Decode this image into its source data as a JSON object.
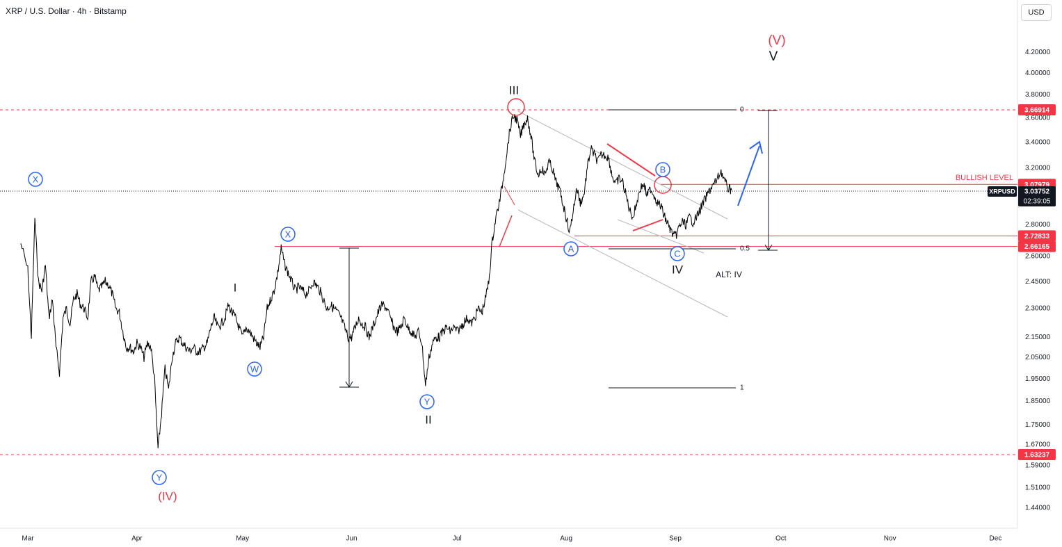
{
  "header": {
    "symbol_title": "XRP / U.S. Dollar · 4h · Bitstamp",
    "currency_button": "USD"
  },
  "chart_data": {
    "type": "line",
    "title": "XRP / U.S. Dollar · 4h · Bitstamp",
    "scale": "log",
    "ylim": [
      1.4,
      4.4
    ],
    "y_ticks": [
      "4.20000",
      "4.00000",
      "3.80000",
      "3.60000",
      "3.40000",
      "3.20000",
      "2.80000",
      "2.60000",
      "2.45000",
      "2.30000",
      "2.15000",
      "2.05000",
      "1.95000",
      "1.85000",
      "1.75000",
      "1.67000",
      "1.59000",
      "1.51000",
      "1.44000"
    ],
    "x_ticks": [
      "Mar",
      "Apr",
      "May",
      "Jun",
      "Jul",
      "Aug",
      "Sep",
      "Oct",
      "Nov",
      "Dec"
    ],
    "series": [
      {
        "name": "XRPUSD",
        "points": [
          [
            "Feb 27",
            2.68
          ],
          [
            "Mar 1",
            2.52
          ],
          [
            "Mar 2",
            2.15
          ],
          [
            "Mar 3",
            2.85
          ],
          [
            "Mar 4",
            2.45
          ],
          [
            "Mar 5",
            2.4
          ],
          [
            "Mar 6",
            2.55
          ],
          [
            "Mar 7",
            2.25
          ],
          [
            "Mar 8",
            2.35
          ],
          [
            "Mar 9",
            2.1
          ],
          [
            "Mar 10",
            1.98
          ],
          [
            "Mar 11",
            2.25
          ],
          [
            "Mar 12",
            2.3
          ],
          [
            "Mar 13",
            2.22
          ],
          [
            "Mar 14",
            2.35
          ],
          [
            "Mar 15",
            2.38
          ],
          [
            "Mar 16",
            2.32
          ],
          [
            "Mar 17",
            2.3
          ],
          [
            "Mar 18",
            2.25
          ],
          [
            "Mar 19",
            2.45
          ],
          [
            "Mar 20",
            2.48
          ],
          [
            "Mar 21",
            2.4
          ],
          [
            "Mar 22",
            2.42
          ],
          [
            "Mar 23",
            2.45
          ],
          [
            "Mar 24",
            2.43
          ],
          [
            "Mar 25",
            2.38
          ],
          [
            "Mar 26",
            2.3
          ],
          [
            "Mar 27",
            2.28
          ],
          [
            "Mar 28",
            2.18
          ],
          [
            "Mar 29",
            2.1
          ],
          [
            "Mar 30",
            2.1
          ],
          [
            "Mar 31",
            2.08
          ],
          [
            "Apr 1",
            2.12
          ],
          [
            "Apr 2",
            2.1
          ],
          [
            "Apr 3",
            2.05
          ],
          [
            "Apr 4",
            2.12
          ],
          [
            "Apr 5",
            2.1
          ],
          [
            "Apr 6",
            1.95
          ],
          [
            "Apr 7",
            1.65
          ],
          [
            "Apr 8",
            1.8
          ],
          [
            "Apr 9",
            2.0
          ],
          [
            "Apr 10",
            1.9
          ],
          [
            "Apr 11",
            2.05
          ],
          [
            "Apr 12",
            2.12
          ],
          [
            "Apr 13",
            2.15
          ],
          [
            "Apr 14",
            2.12
          ],
          [
            "Apr 15",
            2.1
          ],
          [
            "Apr 16",
            2.08
          ],
          [
            "Apr 17",
            2.1
          ],
          [
            "Apr 18",
            2.08
          ],
          [
            "Apr 19",
            2.08
          ],
          [
            "Apr 20",
            2.1
          ],
          [
            "Apr 21",
            2.12
          ],
          [
            "Apr 22",
            2.2
          ],
          [
            "Apr 23",
            2.25
          ],
          [
            "Apr 24",
            2.2
          ],
          [
            "Apr 25",
            2.22
          ],
          [
            "Apr 26",
            2.25
          ],
          [
            "Apr 27",
            2.32
          ],
          [
            "Apr 28",
            2.28
          ],
          [
            "Apr 29",
            2.25
          ],
          [
            "Apr 30",
            2.2
          ],
          [
            "May 1",
            2.15
          ],
          [
            "May 2",
            2.2
          ],
          [
            "May 3",
            2.18
          ],
          [
            "May 4",
            2.15
          ],
          [
            "May 5",
            2.12
          ],
          [
            "May 6",
            2.1
          ],
          [
            "May 7",
            2.15
          ],
          [
            "May 8",
            2.3
          ],
          [
            "May 9",
            2.35
          ],
          [
            "May 10",
            2.4
          ],
          [
            "May 11",
            2.5
          ],
          [
            "May 12",
            2.65
          ],
          [
            "May 13",
            2.55
          ],
          [
            "May 14",
            2.5
          ],
          [
            "May 15",
            2.45
          ],
          [
            "May 16",
            2.4
          ],
          [
            "May 17",
            2.42
          ],
          [
            "May 18",
            2.4
          ],
          [
            "May 19",
            2.38
          ],
          [
            "May 20",
            2.4
          ],
          [
            "May 21",
            2.45
          ],
          [
            "May 22",
            2.43
          ],
          [
            "May 23",
            2.4
          ],
          [
            "May 24",
            2.35
          ],
          [
            "May 25",
            2.3
          ],
          [
            "May 26",
            2.32
          ],
          [
            "May 27",
            2.3
          ],
          [
            "May 28",
            2.28
          ],
          [
            "May 29",
            2.25
          ],
          [
            "May 30",
            2.2
          ],
          [
            "May 31",
            2.15
          ],
          [
            "Jun 1",
            2.15
          ],
          [
            "Jun 2",
            2.2
          ],
          [
            "Jun 3",
            2.25
          ],
          [
            "Jun 4",
            2.22
          ],
          [
            "Jun 5",
            2.2
          ],
          [
            "Jun 6",
            2.15
          ],
          [
            "Jun 7",
            2.2
          ],
          [
            "Jun 8",
            2.25
          ],
          [
            "Jun 9",
            2.3
          ],
          [
            "Jun 10",
            2.32
          ],
          [
            "Jun 11",
            2.3
          ],
          [
            "Jun 12",
            2.25
          ],
          [
            "Jun 13",
            2.2
          ],
          [
            "Jun 14",
            2.18
          ],
          [
            "Jun 15",
            2.2
          ],
          [
            "Jun 16",
            2.25
          ],
          [
            "Jun 17",
            2.2
          ],
          [
            "Jun 18",
            2.18
          ],
          [
            "Jun 19",
            2.15
          ],
          [
            "Jun 20",
            2.18
          ],
          [
            "Jun 21",
            2.12
          ],
          [
            "Jun 22",
            1.92
          ],
          [
            "Jun 23",
            2.05
          ],
          [
            "Jun 24",
            2.12
          ],
          [
            "Jun 25",
            2.15
          ],
          [
            "Jun 26",
            2.15
          ],
          [
            "Jun 27",
            2.18
          ],
          [
            "Jun 28",
            2.2
          ],
          [
            "Jun 29",
            2.18
          ],
          [
            "Jun 30",
            2.2
          ],
          [
            "Jul 1",
            2.18
          ],
          [
            "Jul 2",
            2.2
          ],
          [
            "Jul 3",
            2.23
          ],
          [
            "Jul 4",
            2.25
          ],
          [
            "Jul 5",
            2.22
          ],
          [
            "Jul 6",
            2.25
          ],
          [
            "Jul 7",
            2.3
          ],
          [
            "Jul 8",
            2.28
          ],
          [
            "Jul 9",
            2.35
          ],
          [
            "Jul 10",
            2.45
          ],
          [
            "Jul 11",
            2.7
          ],
          [
            "Jul 12",
            2.85
          ],
          [
            "Jul 13",
            2.95
          ],
          [
            "Jul 14",
            3.1
          ],
          [
            "Jul 15",
            3.3
          ],
          [
            "Jul 16",
            3.5
          ],
          [
            "Jul 17",
            3.62
          ],
          [
            "Jul 18",
            3.58
          ],
          [
            "Jul 19",
            3.45
          ],
          [
            "Jul 20",
            3.55
          ],
          [
            "Jul 21",
            3.6
          ],
          [
            "Jul 22",
            3.45
          ],
          [
            "Jul 23",
            3.25
          ],
          [
            "Jul 24",
            3.15
          ],
          [
            "Jul 25",
            3.2
          ],
          [
            "Jul 26",
            3.15
          ],
          [
            "Jul 27",
            3.25
          ],
          [
            "Jul 28",
            3.2
          ],
          [
            "Jul 29",
            3.1
          ],
          [
            "Jul 30",
            3.05
          ],
          [
            "Jul 31",
            2.95
          ],
          [
            "Aug 1",
            2.85
          ],
          [
            "Aug 2",
            2.75
          ],
          [
            "Aug 3",
            2.9
          ],
          [
            "Aug 4",
            3.05
          ],
          [
            "Aug 5",
            2.95
          ],
          [
            "Aug 6",
            3.0
          ],
          [
            "Aug 7",
            3.2
          ],
          [
            "Aug 8",
            3.35
          ],
          [
            "Aug 9",
            3.3
          ],
          [
            "Aug 10",
            3.25
          ],
          [
            "Aug 11",
            3.3
          ],
          [
            "Aug 12",
            3.3
          ],
          [
            "Aug 13",
            3.28
          ],
          [
            "Aug 14",
            3.15
          ],
          [
            "Aug 15",
            3.08
          ],
          [
            "Aug 16",
            3.12
          ],
          [
            "Aug 17",
            3.1
          ],
          [
            "Aug 18",
            3.0
          ],
          [
            "Aug 19",
            2.9
          ],
          [
            "Aug 20",
            2.85
          ],
          [
            "Aug 21",
            2.95
          ],
          [
            "Aug 22",
            3.05
          ],
          [
            "Aug 23",
            3.08
          ],
          [
            "Aug 24",
            3.0
          ],
          [
            "Aug 25",
            3.05
          ],
          [
            "Aug 26",
            3.0
          ],
          [
            "Aug 27",
            2.95
          ],
          [
            "Aug 28",
            2.92
          ],
          [
            "Aug 29",
            2.85
          ],
          [
            "Aug 30",
            2.8
          ],
          [
            "Aug 31",
            2.75
          ],
          [
            "Sep 1",
            2.72
          ],
          [
            "Sep 2",
            2.78
          ],
          [
            "Sep 3",
            2.82
          ],
          [
            "Sep 4",
            2.8
          ],
          [
            "Sep 5",
            2.85
          ],
          [
            "Sep 6",
            2.82
          ],
          [
            "Sep 7",
            2.85
          ],
          [
            "Sep 8",
            2.9
          ],
          [
            "Sep 9",
            2.95
          ],
          [
            "Sep 10",
            3.0
          ],
          [
            "Sep 11",
            3.05
          ],
          [
            "Sep 12",
            3.08
          ],
          [
            "Sep 13",
            3.12
          ],
          [
            "Sep 14",
            3.18
          ],
          [
            "Sep 15",
            3.1
          ],
          [
            "Sep 16",
            3.05
          ],
          [
            "Sep 17",
            3.04
          ]
        ]
      }
    ],
    "price_labels": [
      {
        "text": "3.66914",
        "value": 3.66914,
        "color": "#f23645"
      },
      {
        "text": "3.07979",
        "value": 3.07979,
        "color": "#f23645"
      },
      {
        "text": "2.72833",
        "value": 2.72833,
        "color": "#f23645"
      },
      {
        "text": "2.66165",
        "value": 2.66165,
        "color": "#f23645"
      },
      {
        "text": "1.63237",
        "value": 1.63237,
        "color": "#f23645"
      }
    ],
    "last_price": {
      "symbol": "XRPUSD",
      "value": "3.03752",
      "countdown": "02:39:05"
    },
    "annotations": {
      "bullish_level": "BULLISH LEVEL",
      "alt_note": "ALT: IV",
      "fib_0": "0",
      "fib_05": "0.5",
      "fib_1": "1",
      "wave_V_major": "(V)",
      "wave_V": "V",
      "wave_III": "III",
      "wave_I": "I",
      "wave_II": "II",
      "wave_IV": "IV",
      "wave_IV_major": "(IV)",
      "circle_X1": "X",
      "circle_X2": "X",
      "circle_W": "W",
      "circle_Y1": "Y",
      "circle_Y2": "Y",
      "circle_A": "A",
      "circle_B": "B",
      "circle_C": "C"
    },
    "colors": {
      "price": "#000000",
      "level": "#f23645",
      "wave_circle": "#2962ff",
      "wave_major": "#f23645",
      "channel": "#b2b5be",
      "arrow": "#2962ff"
    }
  }
}
